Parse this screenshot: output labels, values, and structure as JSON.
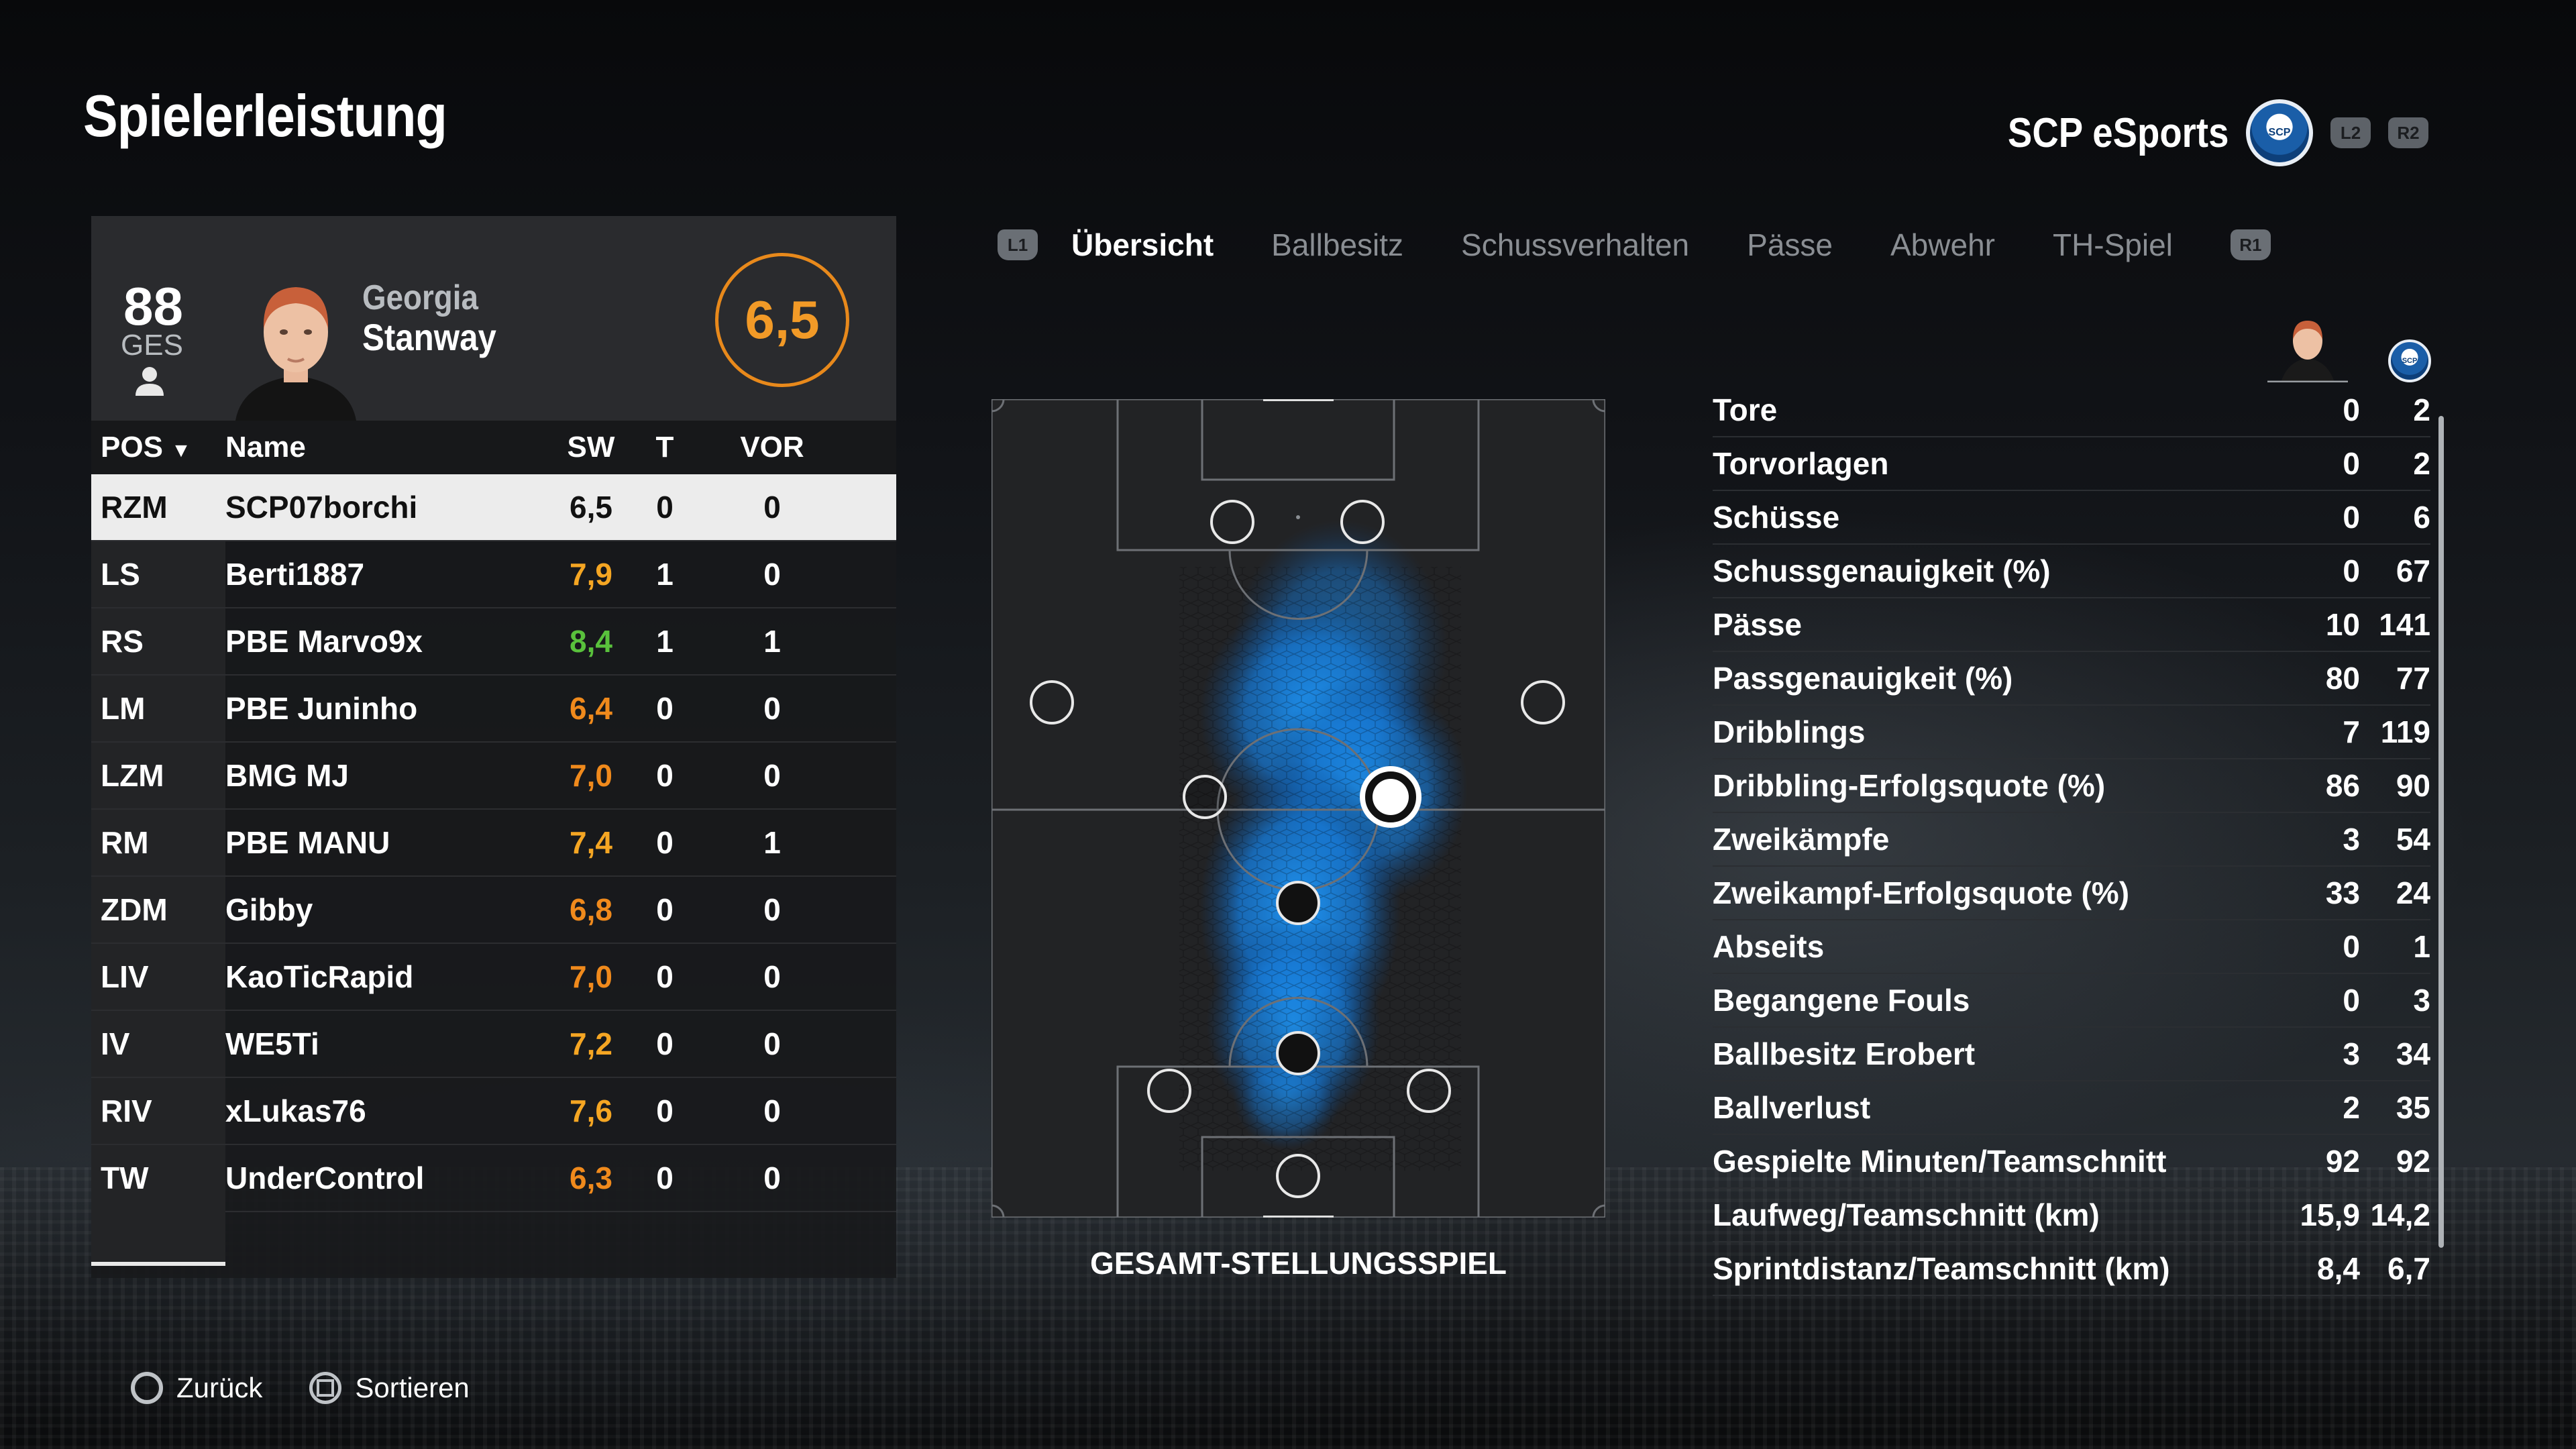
{
  "page": {
    "title": "Spielerleistung"
  },
  "team": {
    "name": "SCP eSports",
    "buttons": [
      "L2",
      "R2"
    ]
  },
  "player_card": {
    "overall": "88",
    "overall_label": "GES",
    "first_name": "Georgia",
    "last_name": "Stanway",
    "rating": "6,5"
  },
  "table": {
    "headers": {
      "pos": "POS",
      "name": "Name",
      "sw": "SW",
      "t": "T",
      "vor": "VOR"
    },
    "rows": [
      {
        "pos": "RZM",
        "name": "SCP07borchi",
        "sw": "6,5",
        "t": "0",
        "vor": "0",
        "color": "#111111"
      },
      {
        "pos": "LS",
        "name": "Berti1887",
        "sw": "7,9",
        "t": "1",
        "vor": "0",
        "color": "#f5a623"
      },
      {
        "pos": "RS",
        "name": "PBE Marvo9x",
        "sw": "8,4",
        "t": "1",
        "vor": "1",
        "color": "#59c13c"
      },
      {
        "pos": "LM",
        "name": "PBE Juninho",
        "sw": "6,4",
        "t": "0",
        "vor": "0",
        "color": "#f08a1c"
      },
      {
        "pos": "LZM",
        "name": "BMG MJ",
        "sw": "7,0",
        "t": "0",
        "vor": "0",
        "color": "#f08a1c"
      },
      {
        "pos": "RM",
        "name": "PBE MANU",
        "sw": "7,4",
        "t": "0",
        "vor": "1",
        "color": "#f5a623"
      },
      {
        "pos": "ZDM",
        "name": "Gibby",
        "sw": "6,8",
        "t": "0",
        "vor": "0",
        "color": "#f08a1c"
      },
      {
        "pos": "LIV",
        "name": "KaoTicRapid",
        "sw": "7,0",
        "t": "0",
        "vor": "0",
        "color": "#f08a1c"
      },
      {
        "pos": "IV",
        "name": "WE5Ti",
        "sw": "7,2",
        "t": "0",
        "vor": "0",
        "color": "#f5a623"
      },
      {
        "pos": "RIV",
        "name": "xLukas76",
        "sw": "7,6",
        "t": "0",
        "vor": "0",
        "color": "#f5a623"
      },
      {
        "pos": "TW",
        "name": "UnderControl",
        "sw": "6,3",
        "t": "0",
        "vor": "0",
        "color": "#f08a1c"
      }
    ]
  },
  "tabs": {
    "left_bumper": "L1",
    "right_bumper": "R1",
    "items": [
      "Übersicht",
      "Ballbesitz",
      "Schussverhalten",
      "Pässe",
      "Abwehr",
      "TH-Spiel"
    ]
  },
  "pitch": {
    "label": "GESAMT-STELLUNGSSPIEL"
  },
  "stats": [
    {
      "label": "Tore",
      "player": "0",
      "team": "2"
    },
    {
      "label": "Torvorlagen",
      "player": "0",
      "team": "2"
    },
    {
      "label": "Schüsse",
      "player": "0",
      "team": "6"
    },
    {
      "label": "Schussgenauigkeit (%)",
      "player": "0",
      "team": "67"
    },
    {
      "label": "Pässe",
      "player": "10",
      "team": "141"
    },
    {
      "label": "Passgenauigkeit (%)",
      "player": "80",
      "team": "77"
    },
    {
      "label": "Dribblings",
      "player": "7",
      "team": "119"
    },
    {
      "label": "Dribbling-Erfolgsquote (%)",
      "player": "86",
      "team": "90"
    },
    {
      "label": "Zweikämpfe",
      "player": "3",
      "team": "54"
    },
    {
      "label": "Zweikampf-Erfolgsquote (%)",
      "player": "33",
      "team": "24"
    },
    {
      "label": "Abseits",
      "player": "0",
      "team": "1"
    },
    {
      "label": "Begangene Fouls",
      "player": "0",
      "team": "3"
    },
    {
      "label": "Ballbesitz Erobert",
      "player": "3",
      "team": "34"
    },
    {
      "label": "Ballverlust",
      "player": "2",
      "team": "35"
    },
    {
      "label": "Gespielte Minuten/Teamschnitt",
      "player": "92",
      "team": "92"
    },
    {
      "label": "Laufweg/Teamschnitt (km)",
      "player": "15,9",
      "team": "14,2"
    },
    {
      "label": "Sprintdistanz/Teamschnitt (km)",
      "player": "8,4",
      "team": "6,7"
    }
  ],
  "footer": {
    "back": "Zurück",
    "sort": "Sortieren"
  },
  "colors": {
    "accent_orange": "#f29a27",
    "heatmap_blue": "#1e8fff",
    "selected_row": "#ececec"
  }
}
